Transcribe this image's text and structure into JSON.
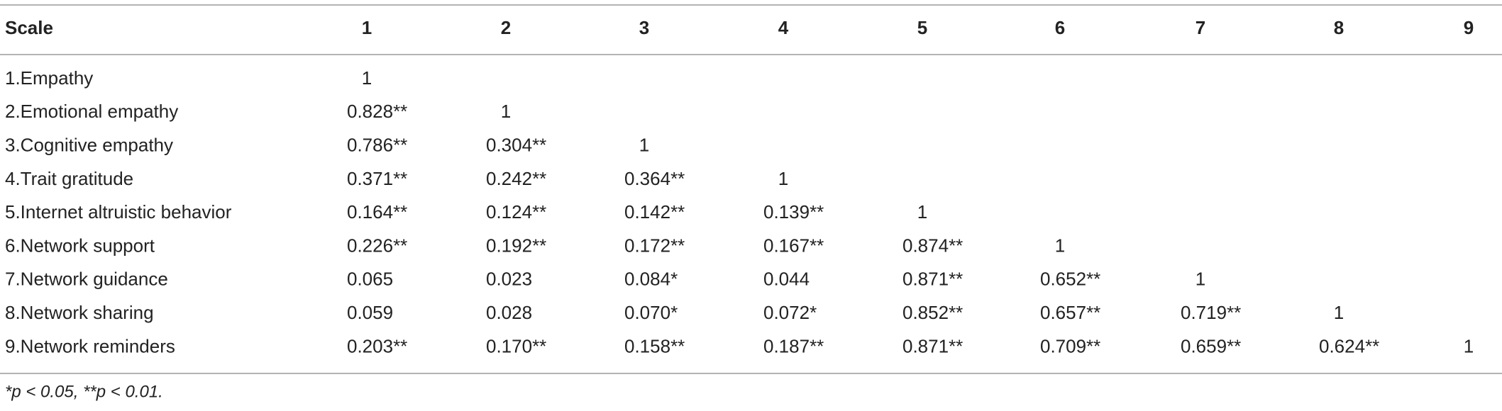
{
  "table": {
    "header": [
      "Scale",
      "1",
      "2",
      "3",
      "4",
      "5",
      "6",
      "7",
      "8",
      "9"
    ],
    "rows": [
      {
        "label": "1.Empathy",
        "values": [
          "1"
        ]
      },
      {
        "label": "2.Emotional empathy",
        "values": [
          "0.828**",
          "1"
        ]
      },
      {
        "label": "3.Cognitive empathy",
        "values": [
          "0.786**",
          "0.304**",
          "1"
        ]
      },
      {
        "label": "4.Trait gratitude",
        "values": [
          "0.371**",
          "0.242**",
          "0.364**",
          "1"
        ]
      },
      {
        "label": "5.Internet altruistic behavior",
        "values": [
          "0.164**",
          "0.124**",
          "0.142**",
          "0.139**",
          "1"
        ]
      },
      {
        "label": "6.Network support",
        "values": [
          "0.226**",
          "0.192**",
          "0.172**",
          "0.167**",
          "0.874**",
          "1"
        ]
      },
      {
        "label": "7.Network guidance",
        "values": [
          "0.065",
          "0.023",
          "0.084*",
          "0.044",
          "0.871**",
          "0.652**",
          "1"
        ]
      },
      {
        "label": "8.Network sharing",
        "values": [
          "0.059",
          "0.028",
          "0.070*",
          "0.072*",
          "0.852**",
          "0.657**",
          "0.719**",
          "1"
        ]
      },
      {
        "label": "9.Network reminders",
        "values": [
          "0.203**",
          "0.170**",
          "0.158**",
          "0.187**",
          "0.871**",
          "0.709**",
          "0.659**",
          "0.624**",
          "1"
        ]
      }
    ],
    "footnote": "*p < 0.05, **p < 0.01."
  }
}
